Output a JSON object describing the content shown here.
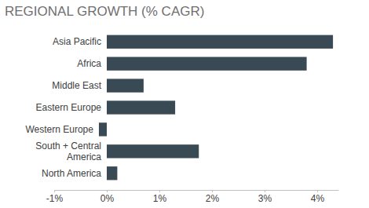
{
  "chart_data": {
    "type": "bar",
    "title": "REGIONAL GROWTH (% CAGR)",
    "orientation": "horizontal",
    "categories": [
      "Asia Pacific",
      "Africa",
      "Middle East",
      "Eastern Europe",
      "Western Europe",
      "South + Central America",
      "North America"
    ],
    "values": [
      4.3,
      3.8,
      0.7,
      1.3,
      -0.15,
      1.75,
      0.2
    ],
    "color": "#3a4a55",
    "xlim": [
      -1,
      4.4
    ],
    "xticks": [
      {
        "value": -1,
        "label": "-1%"
      },
      {
        "value": 0,
        "label": "0%"
      },
      {
        "value": 1,
        "label": "1%"
      },
      {
        "value": 2,
        "label": "2%"
      },
      {
        "value": 3,
        "label": "3%"
      },
      {
        "value": 4,
        "label": "4%"
      }
    ],
    "grid": false
  }
}
